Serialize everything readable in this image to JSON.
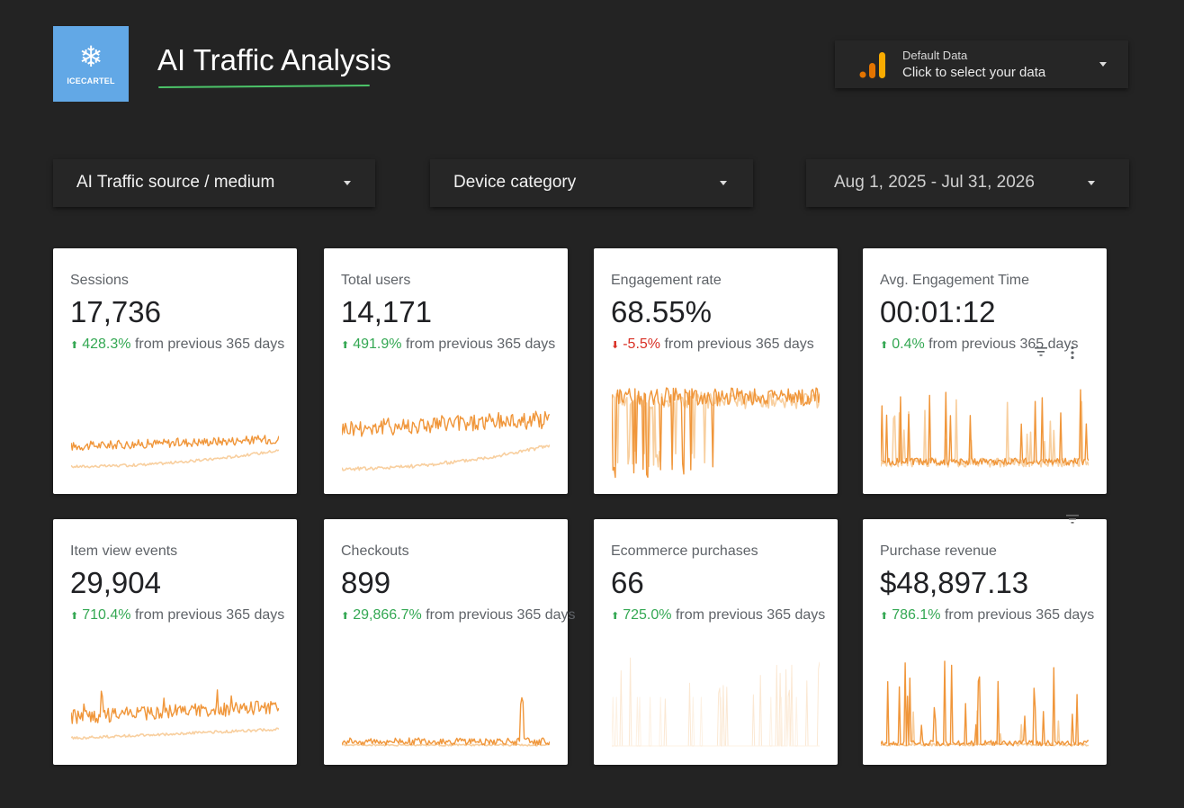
{
  "header": {
    "logo_text": "ICECARTEL",
    "logo_icon": "snowflake-icon",
    "title": "AI Traffic Analysis"
  },
  "datasource": {
    "icon": "bar-chart-icon",
    "label": "Default Data",
    "sub": "Click to select your data"
  },
  "filters": {
    "source": "AI Traffic source / medium",
    "device": "Device category",
    "date": "Aug 1, 2025 - Jul 31, 2026"
  },
  "colors": {
    "current_series": "#f0963a",
    "previous_series": "#f8cf9f",
    "positive": "#34a853",
    "negative": "#d93025"
  },
  "cards": [
    {
      "title": "Sessions",
      "value": "17,736",
      "change": "428.3%",
      "direction": "up",
      "suffix": "from previous 365 days"
    },
    {
      "title": "Total users",
      "value": "14,171",
      "change": "491.9%",
      "direction": "up",
      "suffix": "from previous 365 days"
    },
    {
      "title": "Engagement rate",
      "value": "68.55%",
      "change": "-5.5%",
      "direction": "down",
      "suffix": "from previous 365 days"
    },
    {
      "title": "Avg. Engagement Time",
      "value": "00:01:12",
      "change": "0.4%",
      "direction": "up",
      "suffix": "from previous 365 days"
    },
    {
      "title": "Item view events",
      "value": "29,904",
      "change": "710.4%",
      "direction": "up",
      "suffix": "from previous 365 days"
    },
    {
      "title": "Checkouts",
      "value": "899",
      "change": "29,866.7%",
      "direction": "up",
      "suffix": "from previous 365 days"
    },
    {
      "title": "Ecommerce purchases",
      "value": "66",
      "change": "725.0%",
      "direction": "up",
      "suffix": "from previous 365 days"
    },
    {
      "title": "Purchase revenue",
      "value": "$48,897.13",
      "change": "786.1%",
      "direction": "up",
      "suffix": "from previous 365 days"
    }
  ]
}
